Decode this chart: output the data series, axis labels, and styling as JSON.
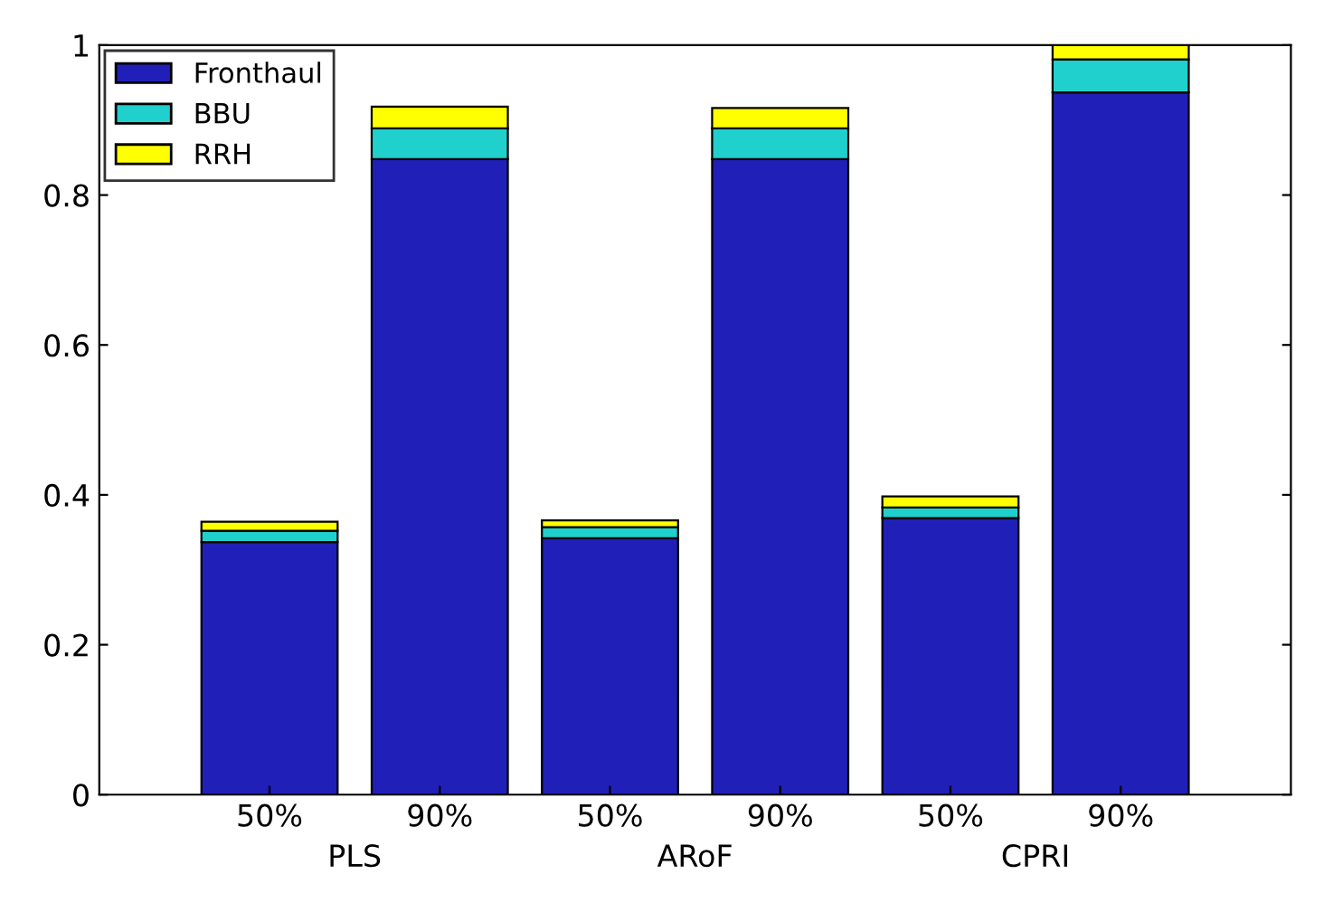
{
  "chart_data": {
    "type": "bar",
    "stacked": true,
    "categories": [
      "50%",
      "90%",
      "50%",
      "90%",
      "50%",
      "90%"
    ],
    "series": [
      {
        "name": "Fronthaul",
        "color": "#2020b8",
        "values": [
          0.337,
          0.848,
          0.342,
          0.848,
          0.369,
          0.937
        ]
      },
      {
        "name": "BBU",
        "color": "#20d0cc",
        "values": [
          0.015,
          0.041,
          0.015,
          0.041,
          0.014,
          0.044
        ]
      },
      {
        "name": "RRH",
        "color": "#ffff00",
        "values": [
          0.012,
          0.029,
          0.009,
          0.027,
          0.015,
          0.019
        ]
      }
    ],
    "annotations": [
      "PLS",
      "ARoF",
      "CPRI"
    ],
    "ylim": [
      0,
      1
    ],
    "yticks": [
      0,
      0.2,
      0.4,
      0.6,
      0.8,
      1
    ],
    "grid": false,
    "legend": "top left"
  }
}
